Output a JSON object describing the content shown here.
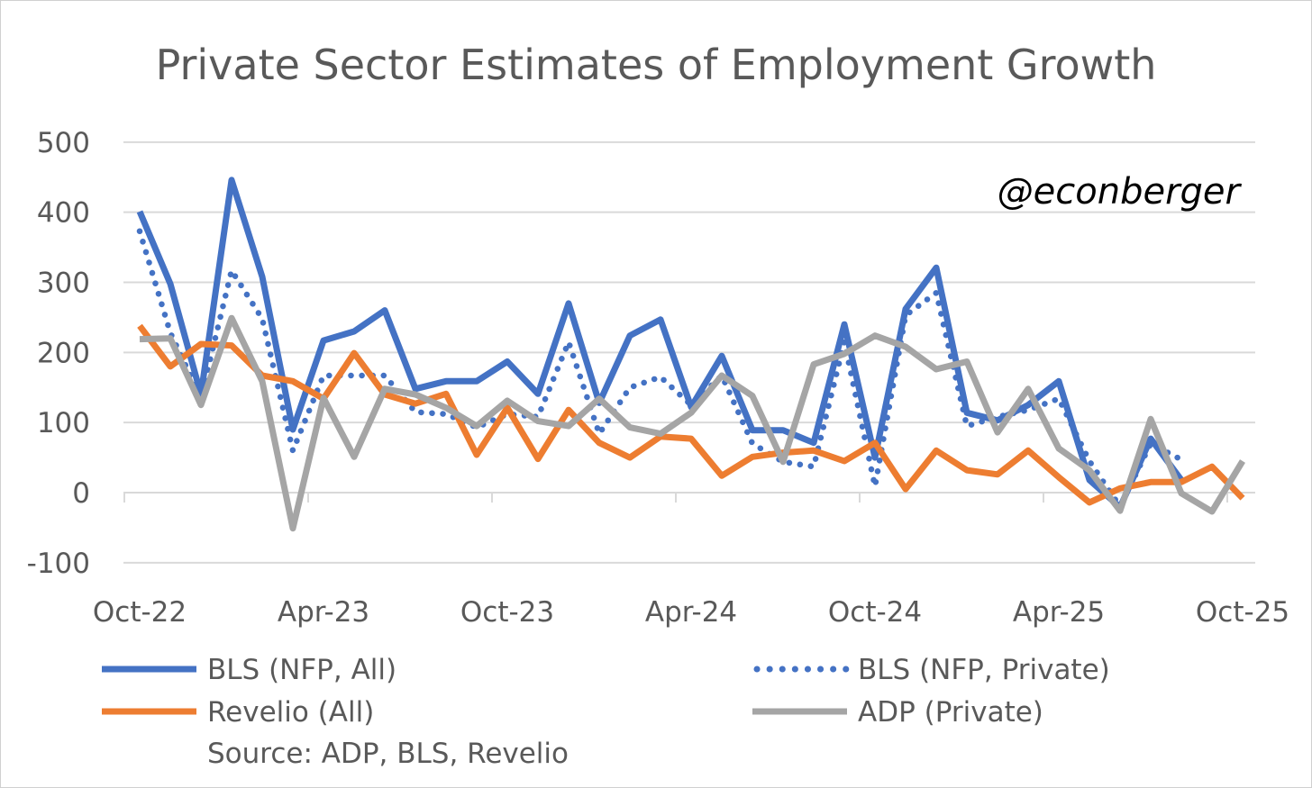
{
  "chart_data": {
    "type": "line",
    "title": "Private Sector Estimates of Employment Growth",
    "watermark": "@econberger",
    "source": "Source: ADP, BLS, Revelio",
    "xlabel": "",
    "ylabel": "",
    "ylim": [
      -100,
      500
    ],
    "y_ticks": [
      -100,
      0,
      100,
      200,
      300,
      400,
      500
    ],
    "y_tick_labels": [
      "-100",
      "0",
      "100",
      "200",
      "300",
      "400",
      "500"
    ],
    "x_tick_labels": [
      "Oct-22",
      "Apr-23",
      "Oct-23",
      "Apr-24",
      "Oct-24",
      "Apr-25",
      "Oct-25"
    ],
    "categories": [
      "Oct-22",
      "Nov-22",
      "Dec-22",
      "Jan-23",
      "Feb-23",
      "Mar-23",
      "Apr-23",
      "May-23",
      "Jun-23",
      "Jul-23",
      "Aug-23",
      "Sep-23",
      "Oct-23",
      "Nov-23",
      "Dec-23",
      "Jan-24",
      "Feb-24",
      "Mar-24",
      "Apr-24",
      "May-24",
      "Jun-24",
      "Jul-24",
      "Aug-24",
      "Sep-24",
      "Oct-24",
      "Nov-24",
      "Dec-24",
      "Jan-25",
      "Feb-25",
      "Mar-25",
      "Apr-25",
      "May-25",
      "Jun-25",
      "Jul-25",
      "Aug-25",
      "Sep-25",
      "Oct-25"
    ],
    "grid": true,
    "legend_placement": "bottom",
    "series": [
      {
        "name": "BLS (NFP, All)",
        "color": "#4472C4",
        "style": "solid",
        "values": [
          401,
          298,
          140,
          446,
          308,
          90,
          217,
          230,
          260,
          148,
          159,
          159,
          187,
          141,
          270,
          128,
          224,
          247,
          122,
          195,
          89,
          89,
          71,
          240,
          50,
          262,
          321,
          114,
          103,
          125,
          159,
          18,
          -21,
          77,
          18,
          null,
          null
        ]
      },
      {
        "name": "BLS (NFP, Private)",
        "color": "#4472C4",
        "style": "dotted",
        "values": [
          373,
          228,
          135,
          317,
          248,
          60,
          167,
          167,
          167,
          115,
          112,
          93,
          112,
          108,
          215,
          84,
          150,
          165,
          125,
          167,
          70,
          44,
          37,
          215,
          9,
          253,
          285,
          95,
          108,
          118,
          134,
          45,
          -20,
          70,
          47,
          null,
          null
        ]
      },
      {
        "name": "Revelio (All)",
        "color": "#ED7D31",
        "style": "solid",
        "values": [
          238,
          180,
          212,
          210,
          167,
          159,
          134,
          199,
          140,
          127,
          141,
          54,
          121,
          48,
          118,
          71,
          50,
          80,
          77,
          24,
          51,
          57,
          60,
          45,
          71,
          5,
          60,
          32,
          26,
          60,
          22,
          -14,
          6,
          15,
          15,
          37,
          -8
        ]
      },
      {
        "name": "ADP (Private)",
        "color": "#A5A5A5",
        "style": "solid",
        "values": [
          219,
          220,
          125,
          249,
          159,
          -51,
          135,
          51,
          148,
          140,
          121,
          95,
          131,
          102,
          95,
          134,
          93,
          84,
          114,
          167,
          138,
          44,
          183,
          198,
          224,
          208,
          176,
          187,
          86,
          148,
          63,
          32,
          -26,
          105,
          -1,
          -27,
          45
        ]
      }
    ]
  }
}
